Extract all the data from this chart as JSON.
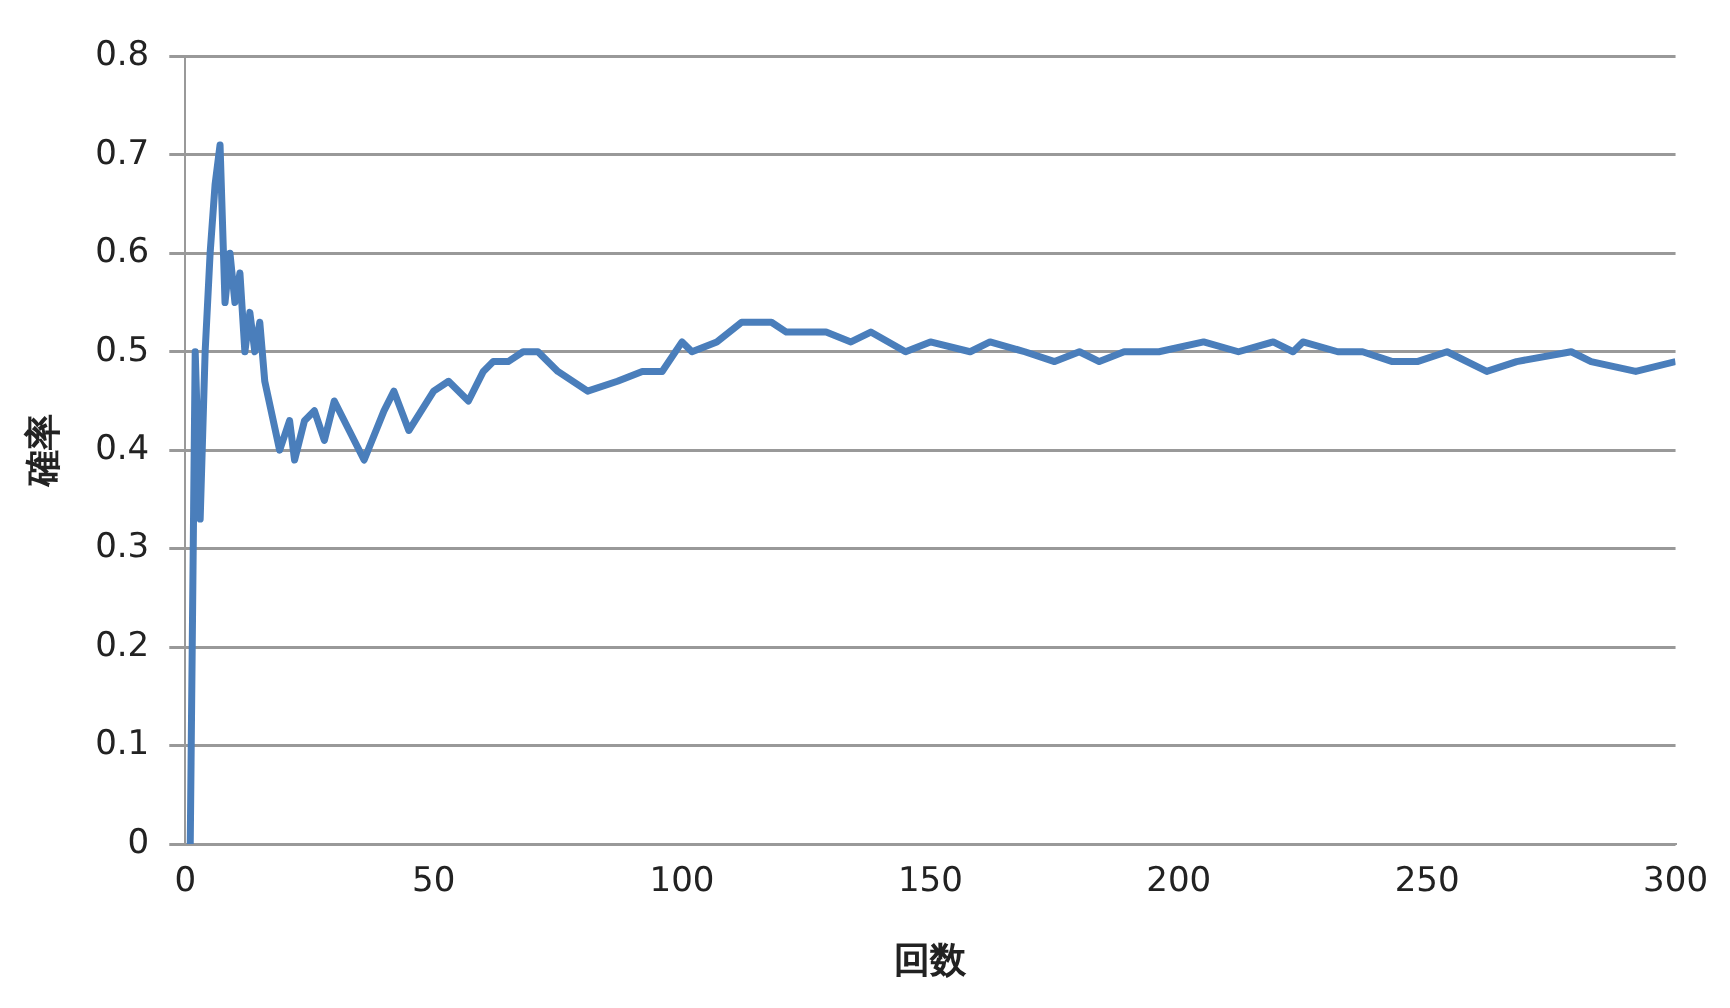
{
  "chart_data": {
    "type": "line",
    "xlabel": "回数",
    "ylabel": "確率",
    "x": [
      1,
      2,
      3,
      4,
      5,
      6,
      7,
      8,
      9,
      10,
      11,
      12,
      13,
      14,
      15,
      16,
      19,
      21,
      22,
      24,
      26,
      28,
      30,
      33,
      36,
      40,
      42,
      45,
      50,
      53,
      57,
      60,
      62,
      65,
      68,
      71,
      75,
      81,
      87,
      92,
      96,
      100,
      102,
      107,
      112,
      118,
      121,
      129,
      134,
      138,
      145,
      150,
      158,
      162,
      169,
      175,
      180,
      184,
      189,
      192,
      196,
      205,
      212,
      219,
      223,
      225,
      232,
      237,
      243,
      248,
      254,
      262,
      268,
      279,
      283,
      292,
      300
    ],
    "series": [
      {
        "color": "#4a7ebb",
        "values": [
          0,
          0.5,
          0.33,
          0.5,
          0.6,
          0.67,
          0.71,
          0.55,
          0.6,
          0.55,
          0.58,
          0.5,
          0.54,
          0.5,
          0.53,
          0.47,
          0.4,
          0.43,
          0.39,
          0.43,
          0.44,
          0.41,
          0.45,
          0.42,
          0.39,
          0.44,
          0.46,
          0.42,
          0.46,
          0.47,
          0.45,
          0.48,
          0.49,
          0.49,
          0.5,
          0.5,
          0.48,
          0.46,
          0.47,
          0.48,
          0.48,
          0.51,
          0.5,
          0.51,
          0.53,
          0.53,
          0.52,
          0.52,
          0.51,
          0.52,
          0.5,
          0.51,
          0.5,
          0.51,
          0.5,
          0.49,
          0.5,
          0.49,
          0.5,
          0.5,
          0.5,
          0.51,
          0.5,
          0.51,
          0.5,
          0.51,
          0.5,
          0.5,
          0.49,
          0.49,
          0.5,
          0.48,
          0.49,
          0.5,
          0.49,
          0.48,
          0.49
        ]
      }
    ],
    "xlim": [
      0,
      300
    ],
    "xticks": [
      0,
      50,
      100,
      150,
      200,
      250,
      300
    ],
    "ylim": [
      0,
      0.8
    ],
    "yticks": [
      0,
      0.1,
      0.2,
      0.3,
      0.4,
      0.5,
      0.6,
      0.7,
      0.8
    ],
    "grid": "y",
    "legend": false,
    "marker": "none",
    "line_style": "solid"
  }
}
